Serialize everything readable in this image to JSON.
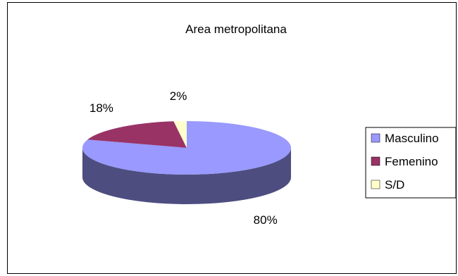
{
  "chart_data": {
    "type": "pie",
    "title": "Area metropolitana",
    "categories": [
      "Masculino",
      "Femenino",
      "S/D"
    ],
    "values": [
      80,
      18,
      2
    ],
    "labels": [
      "80%",
      "18%",
      "2%"
    ],
    "legend_position": "right",
    "colors": {
      "Masculino": "#9999ff",
      "Femenino": "#993366",
      "S/D": "#ffffcc"
    },
    "side_colors": {
      "Masculino": "#4d4d80",
      "Femenino": "#4d1a33",
      "S/D": "#808066"
    }
  }
}
